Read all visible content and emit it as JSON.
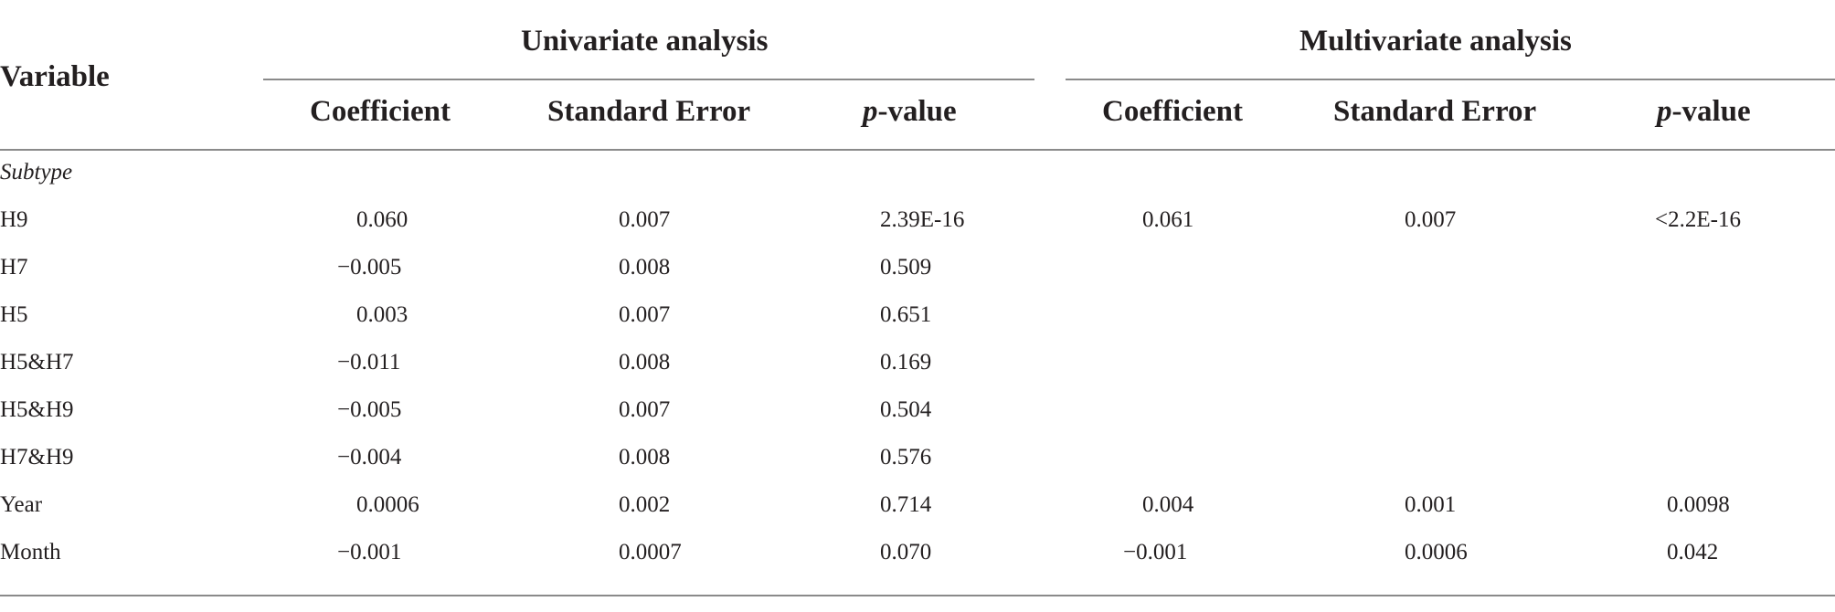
{
  "table": {
    "header": {
      "variable": "Variable",
      "groups": [
        "Univariate analysis",
        "Multivariate analysis"
      ],
      "sub_columns": [
        {
          "main": "Coefficient",
          "suffix": ""
        },
        {
          "main": "Standard Error",
          "suffix": ""
        },
        {
          "main": "p",
          "suffix": "-value"
        },
        {
          "main": "Coefficient",
          "suffix": ""
        },
        {
          "main": "Standard Error",
          "suffix": ""
        },
        {
          "main": "p",
          "suffix": "-value"
        }
      ]
    },
    "section_label": "Subtype",
    "rows": [
      {
        "label": "H9",
        "cells": [
          "0.060",
          "0.007",
          "2.39E-16",
          "0.061",
          "0.007",
          "<2.2E-16"
        ]
      },
      {
        "label": "H7",
        "cells": [
          "−0.005",
          "0.008",
          "0.509",
          "",
          "",
          ""
        ]
      },
      {
        "label": "H5",
        "cells": [
          "0.003",
          "0.007",
          "0.651",
          "",
          "",
          ""
        ]
      },
      {
        "label": "H5&H7",
        "cells": [
          "−0.011",
          "0.008",
          "0.169",
          "",
          "",
          ""
        ]
      },
      {
        "label": "H5&H9",
        "cells": [
          "−0.005",
          "0.007",
          "0.504",
          "",
          "",
          ""
        ]
      },
      {
        "label": "H7&H9",
        "cells": [
          "−0.004",
          "0.008",
          "0.576",
          "",
          "",
          ""
        ]
      },
      {
        "label": "Year",
        "cells": [
          "0.0006",
          "0.002",
          "0.714",
          "0.004",
          "0.001",
          "0.0098"
        ]
      },
      {
        "label": "Month",
        "cells": [
          "−0.001",
          "0.0007",
          "0.070",
          "−0.001",
          "0.0006",
          "0.042"
        ]
      }
    ]
  }
}
